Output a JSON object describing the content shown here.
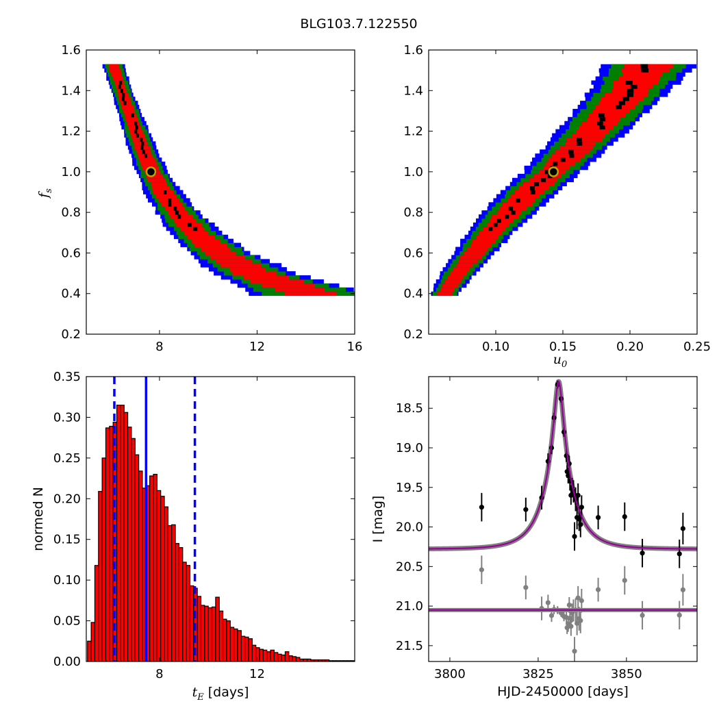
{
  "figure_title": "BLG103.7.122550",
  "chart_data": [
    {
      "id": "fs-vs-tE",
      "type": "heatmap",
      "title": "",
      "xlabel": "",
      "ylabel_main": "f",
      "ylabel_sub": "s",
      "xlim": [
        5.0,
        16.0
      ],
      "ylim": [
        0.2,
        1.6
      ],
      "xticks": [
        "8",
        "12",
        "16"
      ],
      "xtick_values": [
        8,
        12,
        16
      ],
      "yticks": [
        "0.2",
        "0.4",
        "0.6",
        "0.8",
        "1.0",
        "1.2",
        "1.4",
        "1.6"
      ],
      "ytick_values": [
        0.2,
        0.4,
        0.6,
        0.8,
        1.0,
        1.2,
        1.4,
        1.6
      ],
      "best_fit": {
        "x": 7.65,
        "y": 1.0
      },
      "region_colors": {
        "outer": "#0000ff",
        "middle": "#008000",
        "inner": "#ff0000",
        "core": "#000000"
      },
      "band": {
        "center_y": [
          1.53,
          1.4,
          1.3,
          1.2,
          1.1,
          1.0,
          0.9,
          0.8,
          0.7,
          0.6,
          0.5,
          0.4
        ],
        "center_x": [
          6.1,
          6.45,
          6.75,
          7.05,
          7.35,
          7.7,
          8.15,
          8.75,
          9.5,
          10.5,
          11.9,
          14.2
        ],
        "half_width_x": [
          0.2,
          0.2,
          0.22,
          0.25,
          0.28,
          0.3,
          0.35,
          0.4,
          0.5,
          0.6,
          0.8,
          1.1
        ]
      }
    },
    {
      "id": "fs-vs-u0",
      "type": "heatmap",
      "title": "",
      "xlabel_main": "u",
      "xlabel_sub": "0",
      "ylabel": "",
      "xlim": [
        0.05,
        0.25
      ],
      "ylim": [
        0.2,
        1.6
      ],
      "xticks": [
        "0.10",
        "0.15",
        "0.20",
        "0.25"
      ],
      "xtick_values": [
        0.1,
        0.15,
        0.2,
        0.25
      ],
      "yticks": [
        "0.2",
        "0.4",
        "0.6",
        "0.8",
        "1.0",
        "1.2",
        "1.4",
        "1.6"
      ],
      "ytick_values": [
        0.2,
        0.4,
        0.6,
        0.8,
        1.0,
        1.2,
        1.4,
        1.6
      ],
      "best_fit": {
        "x": 0.143,
        "y": 1.0
      },
      "region_colors": {
        "outer": "#0000ff",
        "middle": "#008000",
        "inner": "#ff0000",
        "core": "#000000"
      },
      "band": {
        "center_y": [
          0.4,
          0.5,
          0.6,
          0.7,
          0.8,
          0.9,
          1.0,
          1.1,
          1.2,
          1.3,
          1.4,
          1.53
        ],
        "center_x": [
          0.062,
          0.072,
          0.084,
          0.096,
          0.11,
          0.125,
          0.142,
          0.157,
          0.172,
          0.186,
          0.2,
          0.215
        ],
        "half_width_x": [
          0.005,
          0.006,
          0.007,
          0.008,
          0.009,
          0.01,
          0.01,
          0.011,
          0.012,
          0.013,
          0.014,
          0.016
        ]
      }
    },
    {
      "id": "tE-histogram",
      "type": "bar",
      "title": "",
      "xlabel_main": "t",
      "xlabel_sub": "E",
      "xlabel_suffix": " [days]",
      "ylabel": "normed N",
      "xlim": [
        5.0,
        16.0
      ],
      "ylim": [
        0.0,
        0.35
      ],
      "xticks": [
        "8",
        "12"
      ],
      "xtick_values": [
        8,
        12
      ],
      "yticks": [
        "0.00",
        "0.05",
        "0.10",
        "0.15",
        "0.20",
        "0.25",
        "0.30",
        "0.35"
      ],
      "ytick_values": [
        0.0,
        0.05,
        0.1,
        0.15,
        0.2,
        0.25,
        0.3,
        0.35
      ],
      "bin_start": 5.05,
      "bin_width": 0.15,
      "bar_color": "#ff0000",
      "values": [
        0.025,
        0.048,
        0.118,
        0.209,
        0.25,
        0.287,
        0.289,
        0.294,
        0.315,
        0.315,
        0.306,
        0.288,
        0.274,
        0.254,
        0.234,
        0.213,
        0.216,
        0.228,
        0.23,
        0.21,
        0.203,
        0.19,
        0.167,
        0.168,
        0.145,
        0.14,
        0.122,
        0.118,
        0.093,
        0.09,
        0.08,
        0.069,
        0.068,
        0.066,
        0.067,
        0.079,
        0.062,
        0.052,
        0.05,
        0.042,
        0.04,
        0.038,
        0.031,
        0.03,
        0.028,
        0.02,
        0.017,
        0.015,
        0.014,
        0.012,
        0.014,
        0.011,
        0.009,
        0.008,
        0.012,
        0.007,
        0.006,
        0.005,
        0.003,
        0.003,
        0.003,
        0.002,
        0.002,
        0.002,
        0.002,
        0.002,
        0.001,
        0.001,
        0.001,
        0.001,
        0.001,
        0.001,
        0.001
      ],
      "vlines": [
        {
          "x": 6.15,
          "style": "dashed",
          "color": "#0000ff"
        },
        {
          "x": 7.45,
          "style": "solid",
          "color": "#0000ff"
        },
        {
          "x": 9.45,
          "style": "dashed",
          "color": "#0000ff"
        }
      ]
    },
    {
      "id": "lightcurve",
      "type": "scatter",
      "title": "",
      "xlabel": "HJD-2450000 [days]",
      "ylabel": "I [mag]",
      "xlim": [
        3794,
        3870
      ],
      "ylim": [
        21.7,
        18.1
      ],
      "xticks": [
        "3800",
        "3825",
        "3850"
      ],
      "xtick_values": [
        3800,
        3825,
        3850
      ],
      "yticks": [
        "18.5",
        "19.0",
        "19.5",
        "20.0",
        "20.5",
        "21.0",
        "21.5"
      ],
      "ytick_values": [
        18.5,
        19.0,
        19.5,
        20.0,
        20.5,
        21.0,
        21.5
      ],
      "model": {
        "t0": 3830.8,
        "tE": 7.65,
        "u0": 0.143,
        "base_mag": 20.28,
        "residual_baseline": 21.05,
        "color": "#990099"
      },
      "data_color": "#000000",
      "residual_color": "#808080",
      "points": [
        {
          "x": 3809.0,
          "y": 19.75,
          "err": 0.18
        },
        {
          "x": 3821.5,
          "y": 19.78,
          "err": 0.15
        },
        {
          "x": 3826.0,
          "y": 19.63,
          "err": 0.15
        },
        {
          "x": 3827.8,
          "y": 19.17,
          "err": 0.1
        },
        {
          "x": 3828.8,
          "y": 19.0,
          "err": 0.08
        },
        {
          "x": 3829.5,
          "y": 18.62,
          "err": 0.06
        },
        {
          "x": 3830.5,
          "y": 18.2,
          "err": 0.05
        },
        {
          "x": 3831.5,
          "y": 18.38,
          "err": 0.05
        },
        {
          "x": 3832.3,
          "y": 18.8,
          "err": 0.06
        },
        {
          "x": 3833.0,
          "y": 19.1,
          "err": 0.08
        },
        {
          "x": 3833.2,
          "y": 19.3,
          "err": 0.08
        },
        {
          "x": 3833.5,
          "y": 19.35,
          "err": 0.1
        },
        {
          "x": 3833.8,
          "y": 19.2,
          "err": 0.1
        },
        {
          "x": 3834.0,
          "y": 19.42,
          "err": 0.12
        },
        {
          "x": 3834.3,
          "y": 19.6,
          "err": 0.12
        },
        {
          "x": 3834.6,
          "y": 19.5,
          "err": 0.12
        },
        {
          "x": 3835.0,
          "y": 19.55,
          "err": 0.14
        },
        {
          "x": 3835.3,
          "y": 20.12,
          "err": 0.18
        },
        {
          "x": 3835.6,
          "y": 19.65,
          "err": 0.15
        },
        {
          "x": 3836.0,
          "y": 19.88,
          "err": 0.15
        },
        {
          "x": 3836.3,
          "y": 19.6,
          "err": 0.15
        },
        {
          "x": 3836.6,
          "y": 19.9,
          "err": 0.15
        },
        {
          "x": 3837.0,
          "y": 19.97,
          "err": 0.16
        },
        {
          "x": 3837.3,
          "y": 19.75,
          "err": 0.15
        },
        {
          "x": 3842.0,
          "y": 19.88,
          "err": 0.15
        },
        {
          "x": 3849.5,
          "y": 19.87,
          "err": 0.18
        },
        {
          "x": 3854.5,
          "y": 20.33,
          "err": 0.18
        },
        {
          "x": 3865.0,
          "y": 20.34,
          "err": 0.18
        },
        {
          "x": 3866.0,
          "y": 20.02,
          "err": 0.2
        }
      ]
    }
  ]
}
